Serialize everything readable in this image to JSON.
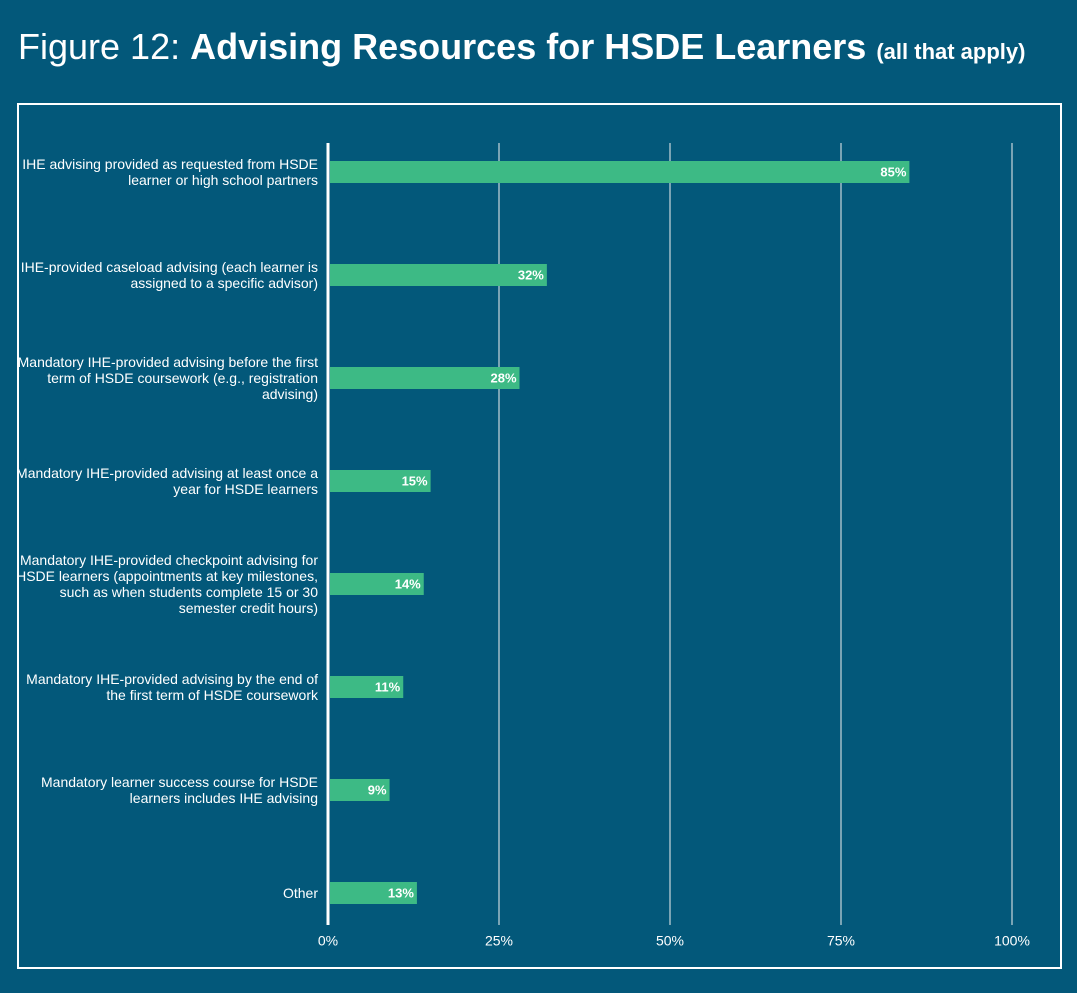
{
  "chart_data": {
    "type": "bar",
    "orientation": "horizontal",
    "figure_label": "Figure 12:",
    "title": "Advising Resources for HSDE Learners",
    "title_note": "(all that apply)",
    "categories": [
      "IHE advising provided as requested from HSDE learner or high school partners",
      "IHE-provided caseload advising (each learner is assigned to a specific advisor)",
      "Mandatory IHE-provided advising before the first term of HSDE coursework (e.g., registration advising)",
      "Mandatory IHE-provided advising at least once a year for HSDE learners",
      "Mandatory IHE-provided checkpoint advising for HSDE learners (appointments at key milestones, such as when students complete 15 or 30 semester credit hours)",
      "Mandatory IHE-provided advising by the end of the first term of HSDE coursework",
      "Mandatory learner success course for HSDE learners includes IHE advising",
      "Other"
    ],
    "values": [
      85,
      32,
      28,
      15,
      14,
      11,
      9,
      13
    ],
    "value_labels": [
      "85%",
      "32%",
      "28%",
      "15%",
      "14%",
      "11%",
      "9%",
      "13%"
    ],
    "color": "#3dba85",
    "xlim": [
      0,
      100
    ],
    "xticks": [
      {
        "value": 0,
        "label": "0%"
      },
      {
        "value": 25,
        "label": "25%"
      },
      {
        "value": 50,
        "label": "50%"
      },
      {
        "value": 75,
        "label": "75%"
      },
      {
        "value": 100,
        "label": "100%"
      }
    ],
    "grid": true
  }
}
